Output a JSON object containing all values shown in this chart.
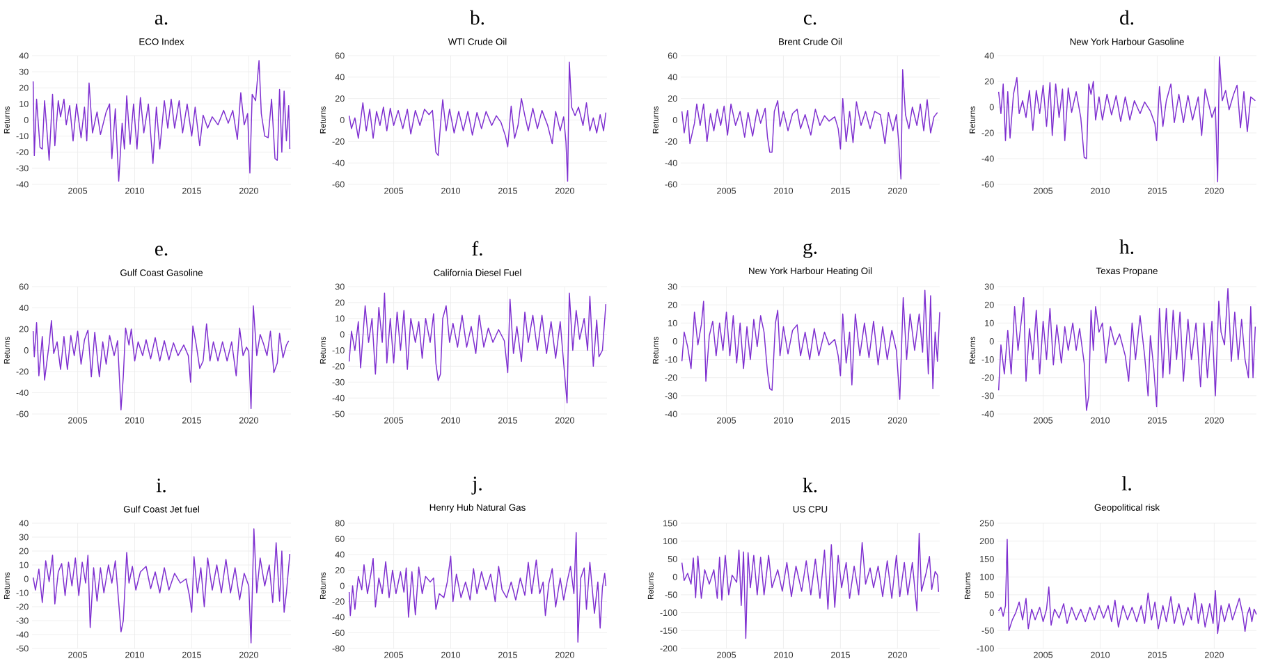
{
  "chart_data": [
    {
      "type": "line",
      "title": "a.",
      "subtitle": "ECO Index",
      "ylabel": "Returns",
      "color": "#7e2fd0",
      "grid": true,
      "xlim": [
        2001,
        2023.7
      ],
      "xticks": [
        2005,
        2010,
        2015,
        2020
      ],
      "ylim": [
        -40,
        40
      ],
      "yticks": [
        -40,
        -30,
        -20,
        -10,
        0,
        10,
        20,
        30,
        40
      ],
      "x": [
        2001.1,
        2001.2,
        2001.4,
        2001.7,
        2001.9,
        2002.1,
        2002.3,
        2002.5,
        2002.8,
        2003.0,
        2003.3,
        2003.5,
        2003.8,
        2004.0,
        2004.3,
        2004.6,
        2004.9,
        2005.3,
        2005.6,
        2005.8,
        2006.0,
        2006.3,
        2006.7,
        2007.0,
        2007.5,
        2007.8,
        2008.0,
        2008.3,
        2008.6,
        2008.9,
        2009.1,
        2009.3,
        2009.6,
        2009.9,
        2010.2,
        2010.5,
        2010.8,
        2011.2,
        2011.6,
        2011.9,
        2012.2,
        2012.6,
        2012.9,
        2013.2,
        2013.5,
        2013.9,
        2014.2,
        2014.6,
        2015.0,
        2015.3,
        2015.7,
        2016.0,
        2016.4,
        2016.8,
        2017.3,
        2017.8,
        2018.2,
        2018.6,
        2019.0,
        2019.3,
        2019.6,
        2019.9,
        2020.1,
        2020.3,
        2020.6,
        2020.9,
        2021.1,
        2021.4,
        2021.7,
        2022.0,
        2022.3,
        2022.5,
        2022.7,
        2022.9,
        2023.1,
        2023.3,
        2023.5,
        2023.6
      ],
      "values": [
        24,
        -22,
        13,
        -17,
        -18,
        12,
        -6,
        -25,
        16,
        -16,
        12,
        2,
        13,
        -3,
        9,
        -13,
        10,
        -11,
        8,
        -13,
        23,
        -8,
        5,
        -9,
        5,
        10,
        -24,
        7,
        -38,
        -2,
        -18,
        15,
        -15,
        10,
        -18,
        14,
        -8,
        10,
        -27,
        8,
        -18,
        12,
        -5,
        13,
        -5,
        12,
        -8,
        10,
        -10,
        8,
        -16,
        3,
        -5,
        2,
        -3,
        6,
        -2,
        6,
        -12,
        17,
        -3,
        4,
        -33,
        16,
        12,
        37,
        4,
        -10,
        -11,
        13,
        -24,
        -25,
        19,
        -20,
        18,
        -13,
        9,
        -18
      ]
    },
    {
      "type": "line",
      "title": "b.",
      "subtitle": "WTI Crude Oil",
      "ylabel": "Returns",
      "color": "#7e2fd0",
      "grid": true,
      "xlim": [
        2001,
        2023.7
      ],
      "xticks": [
        2005,
        2010,
        2015,
        2020
      ],
      "ylim": [
        -60,
        60
      ],
      "yticks": [
        -60,
        -40,
        -20,
        0,
        20,
        40,
        60
      ],
      "x": [
        2001.1,
        2001.3,
        2001.6,
        2001.9,
        2002.3,
        2002.6,
        2002.9,
        2003.2,
        2003.5,
        2003.8,
        2004.1,
        2004.4,
        2004.7,
        2005.0,
        2005.4,
        2005.8,
        2006.2,
        2006.5,
        2006.9,
        2007.3,
        2007.7,
        2008.1,
        2008.4,
        2008.7,
        2008.9,
        2009.1,
        2009.3,
        2009.6,
        2009.9,
        2010.3,
        2010.7,
        2011.1,
        2011.5,
        2011.9,
        2012.3,
        2012.7,
        2013.1,
        2013.6,
        2014.0,
        2014.4,
        2014.8,
        2015.0,
        2015.3,
        2015.6,
        2015.9,
        2016.2,
        2016.5,
        2016.8,
        2017.2,
        2017.6,
        2018.0,
        2018.5,
        2018.9,
        2019.2,
        2019.6,
        2019.9,
        2020.1,
        2020.25,
        2020.4,
        2020.6,
        2020.9,
        2021.2,
        2021.6,
        2021.9,
        2022.2,
        2022.5,
        2022.8,
        2023.1,
        2023.4,
        2023.6
      ],
      "values": [
        4,
        -8,
        2,
        -17,
        16,
        -10,
        10,
        -17,
        8,
        -5,
        12,
        -10,
        11,
        -5,
        9,
        -8,
        10,
        -13,
        9,
        -5,
        10,
        5,
        9,
        -30,
        -33,
        -5,
        19,
        -10,
        10,
        -12,
        8,
        -10,
        8,
        -14,
        7,
        -8,
        8,
        -5,
        4,
        -2,
        -15,
        -25,
        13,
        -17,
        -5,
        20,
        4,
        -10,
        11,
        -8,
        9,
        -5,
        -22,
        8,
        -10,
        3,
        -20,
        -57,
        54,
        12,
        4,
        12,
        -5,
        16,
        -10,
        2,
        -12,
        5,
        -10,
        7
      ]
    },
    {
      "type": "line",
      "title": "c.",
      "subtitle": "Brent Crude Oil",
      "ylabel": "Returns",
      "color": "#7e2fd0",
      "grid": true,
      "xlim": [
        2001,
        2023.7
      ],
      "xticks": [
        2005,
        2010,
        2015,
        2020
      ],
      "ylim": [
        -60,
        60
      ],
      "yticks": [
        -60,
        -40,
        -20,
        0,
        20,
        40,
        60
      ],
      "x": [
        2001.1,
        2001.3,
        2001.6,
        2001.8,
        2002.2,
        2002.4,
        2002.7,
        2003.0,
        2003.3,
        2003.6,
        2003.9,
        2004.2,
        2004.5,
        2004.8,
        2005.1,
        2005.4,
        2005.8,
        2006.2,
        2006.6,
        2006.9,
        2007.3,
        2007.7,
        2008.0,
        2008.4,
        2008.6,
        2008.8,
        2009.0,
        2009.2,
        2009.5,
        2009.7,
        2010.0,
        2010.4,
        2010.8,
        2011.2,
        2011.5,
        2011.9,
        2012.4,
        2012.8,
        2013.2,
        2013.6,
        2014.0,
        2014.5,
        2014.8,
        2015.0,
        2015.2,
        2015.5,
        2015.8,
        2016.1,
        2016.4,
        2016.8,
        2017.2,
        2017.6,
        2018.0,
        2018.5,
        2018.9,
        2019.2,
        2019.6,
        2019.9,
        2020.1,
        2020.3,
        2020.45,
        2020.7,
        2021.0,
        2021.3,
        2021.7,
        2022.0,
        2022.3,
        2022.6,
        2022.9,
        2023.2,
        2023.5
      ],
      "values": [
        8,
        -12,
        9,
        -22,
        -3,
        15,
        -5,
        15,
        -20,
        6,
        -10,
        10,
        -5,
        13,
        -14,
        15,
        -5,
        8,
        -16,
        7,
        -15,
        10,
        -3,
        11,
        -16,
        -30,
        -30,
        8,
        18,
        -6,
        8,
        -10,
        6,
        10,
        -8,
        5,
        -14,
        10,
        -5,
        4,
        -1,
        3,
        -8,
        -27,
        20,
        -20,
        8,
        -21,
        17,
        -5,
        8,
        -8,
        8,
        5,
        -22,
        7,
        -10,
        5,
        -20,
        -55,
        47,
        5,
        -8,
        12,
        -5,
        15,
        -10,
        19,
        -12,
        3,
        7
      ]
    },
    {
      "type": "line",
      "title": "d.",
      "subtitle": "New York Harbour Gasoline",
      "ylabel": "Returns",
      "color": "#7e2fd0",
      "grid": true,
      "xlim": [
        2001,
        2023.7
      ],
      "xticks": [
        2005,
        2010,
        2015,
        2020
      ],
      "ylim": [
        -60,
        40
      ],
      "yticks": [
        -60,
        -40,
        -20,
        0,
        20,
        40
      ],
      "x": [
        2001.1,
        2001.3,
        2001.5,
        2001.7,
        2001.9,
        2002.1,
        2002.4,
        2002.7,
        2002.9,
        2003.2,
        2003.5,
        2003.8,
        2004.1,
        2004.4,
        2004.7,
        2005.0,
        2005.3,
        2005.6,
        2005.8,
        2006.1,
        2006.4,
        2006.7,
        2006.9,
        2007.2,
        2007.5,
        2007.9,
        2008.3,
        2008.6,
        2008.8,
        2009.0,
        2009.2,
        2009.4,
        2009.6,
        2009.9,
        2010.2,
        2010.6,
        2011.0,
        2011.4,
        2011.8,
        2012.2,
        2012.6,
        2013.0,
        2013.5,
        2013.9,
        2014.4,
        2014.8,
        2014.95,
        2015.2,
        2015.5,
        2015.8,
        2016.2,
        2016.5,
        2016.9,
        2017.3,
        2017.7,
        2018.1,
        2018.6,
        2018.9,
        2019.2,
        2019.5,
        2019.8,
        2020.1,
        2020.3,
        2020.45,
        2020.7,
        2021.0,
        2021.3,
        2021.7,
        2022.0,
        2022.3,
        2022.6,
        2022.9,
        2023.2,
        2023.6
      ],
      "values": [
        12,
        -5,
        18,
        -26,
        12,
        -24,
        10,
        23,
        -5,
        5,
        -8,
        13,
        -18,
        13,
        -5,
        17,
        -15,
        19,
        -22,
        18,
        -8,
        14,
        -26,
        15,
        -4,
        12,
        -8,
        -39,
        -40,
        18,
        10,
        20,
        -10,
        8,
        -10,
        10,
        -6,
        9,
        -11,
        8,
        -10,
        5,
        -5,
        4,
        -3,
        -13,
        -26,
        16,
        -15,
        5,
        18,
        -12,
        10,
        -12,
        9,
        -10,
        8,
        -22,
        14,
        3,
        -8,
        0,
        -58,
        39,
        5,
        13,
        -2,
        10,
        17,
        -16,
        12,
        -19,
        8,
        5
      ]
    },
    {
      "type": "line",
      "title": "e.",
      "subtitle": "Gulf Coast Gasoline",
      "ylabel": "Returns",
      "color": "#7e2fd0",
      "grid": true,
      "xlim": [
        2001,
        2023.7
      ],
      "xticks": [
        2005,
        2010,
        2015,
        2020
      ],
      "ylim": [
        -60,
        60
      ],
      "yticks": [
        -60,
        -40,
        -20,
        0,
        20,
        40,
        60
      ],
      "x": [
        2001.1,
        2001.2,
        2001.4,
        2001.6,
        2001.9,
        2002.1,
        2002.5,
        2002.7,
        2002.9,
        2003.2,
        2003.5,
        2003.8,
        2004.1,
        2004.4,
        2004.7,
        2005.0,
        2005.3,
        2005.6,
        2005.9,
        2006.2,
        2006.5,
        2006.9,
        2007.2,
        2007.5,
        2007.8,
        2008.2,
        2008.5,
        2008.8,
        2009.0,
        2009.2,
        2009.5,
        2009.7,
        2010.0,
        2010.3,
        2010.7,
        2011.0,
        2011.4,
        2011.8,
        2012.2,
        2012.6,
        2013.0,
        2013.4,
        2013.8,
        2014.3,
        2014.7,
        2014.9,
        2015.1,
        2015.4,
        2015.7,
        2016.0,
        2016.3,
        2016.6,
        2016.9,
        2017.3,
        2017.7,
        2018.1,
        2018.5,
        2018.9,
        2019.2,
        2019.5,
        2019.8,
        2020.0,
        2020.2,
        2020.4,
        2020.7,
        2021.0,
        2021.3,
        2021.6,
        2021.9,
        2022.2,
        2022.5,
        2022.7,
        2023.0,
        2023.3,
        2023.5
      ],
      "values": [
        18,
        -6,
        26,
        -24,
        13,
        -28,
        6,
        28,
        -3,
        8,
        -18,
        13,
        -18,
        14,
        -5,
        18,
        -13,
        10,
        19,
        -25,
        17,
        -25,
        8,
        -13,
        14,
        -5,
        9,
        -56,
        -25,
        21,
        5,
        20,
        -10,
        8,
        -5,
        10,
        -8,
        12,
        -10,
        9,
        -9,
        7,
        -5,
        5,
        -5,
        -30,
        23,
        5,
        -17,
        -10,
        25,
        -10,
        8,
        -10,
        8,
        -10,
        8,
        -24,
        21,
        -5,
        3,
        -1,
        -55,
        42,
        -5,
        15,
        6,
        -5,
        18,
        -21,
        -12,
        16,
        -7,
        5,
        9
      ]
    },
    {
      "type": "line",
      "title": "f.",
      "subtitle": "California Diesel Fuel",
      "ylabel": "Returns",
      "color": "#7e2fd0",
      "grid": true,
      "xlim": [
        2001,
        2023.7
      ],
      "xticks": [
        2005,
        2010,
        2015,
        2020
      ],
      "ylim": [
        -50,
        30
      ],
      "yticks": [
        -50,
        -40,
        -30,
        -20,
        -10,
        0,
        10,
        20,
        30
      ],
      "x": [
        2001.1,
        2001.3,
        2001.6,
        2001.9,
        2002.1,
        2002.5,
        2002.8,
        2003.1,
        2003.4,
        2003.7,
        2004.0,
        2004.2,
        2004.4,
        2004.7,
        2005.0,
        2005.3,
        2005.6,
        2005.9,
        2006.2,
        2006.5,
        2006.9,
        2007.2,
        2007.5,
        2007.8,
        2008.2,
        2008.5,
        2008.7,
        2008.9,
        2009.1,
        2009.3,
        2009.6,
        2009.9,
        2010.2,
        2010.6,
        2011.0,
        2011.4,
        2011.8,
        2012.2,
        2012.5,
        2012.9,
        2013.3,
        2013.7,
        2014.2,
        2014.7,
        2015.0,
        2015.2,
        2015.5,
        2015.8,
        2016.2,
        2016.5,
        2016.8,
        2017.2,
        2017.6,
        2018.0,
        2018.4,
        2018.8,
        2019.2,
        2019.6,
        2019.9,
        2020.2,
        2020.4,
        2020.7,
        2021.0,
        2021.3,
        2021.7,
        2022.0,
        2022.2,
        2022.5,
        2022.8,
        2023.0,
        2023.3,
        2023.6
      ],
      "values": [
        -17,
        2,
        -10,
        8,
        -21,
        18,
        -5,
        10,
        -25,
        17,
        -5,
        26,
        -18,
        10,
        -18,
        14,
        -10,
        15,
        -22,
        10,
        -5,
        8,
        -15,
        10,
        -5,
        13,
        -18,
        -29,
        -25,
        10,
        18,
        -5,
        7,
        -8,
        12,
        -8,
        5,
        -12,
        12,
        -8,
        4,
        -5,
        3,
        -4,
        -24,
        22,
        -12,
        5,
        -17,
        14,
        -5,
        12,
        -10,
        12,
        -12,
        8,
        -15,
        8,
        -18,
        -43,
        26,
        -10,
        15,
        -3,
        10,
        -10,
        24,
        -20,
        9,
        -14,
        -10,
        19
      ]
    },
    {
      "type": "line",
      "title": "g.",
      "subtitle": "New York Harbour Heating Oil",
      "ylabel": "Returns",
      "color": "#7e2fd0",
      "grid": true,
      "xlim": [
        2001,
        2023.7
      ],
      "xticks": [
        2005,
        2010,
        2015,
        2020
      ],
      "ylim": [
        -40,
        30
      ],
      "yticks": [
        -40,
        -30,
        -20,
        -10,
        0,
        10,
        20,
        30
      ],
      "x": [
        2001.1,
        2001.3,
        2001.6,
        2001.9,
        2002.2,
        2002.5,
        2002.8,
        2003.0,
        2003.2,
        2003.5,
        2003.8,
        2004.1,
        2004.4,
        2004.7,
        2005.0,
        2005.3,
        2005.6,
        2005.9,
        2006.2,
        2006.5,
        2006.8,
        2007.1,
        2007.4,
        2007.7,
        2008.0,
        2008.3,
        2008.6,
        2008.8,
        2009.0,
        2009.3,
        2009.5,
        2009.7,
        2010.0,
        2010.4,
        2010.8,
        2011.2,
        2011.5,
        2011.9,
        2012.3,
        2012.7,
        2013.1,
        2013.6,
        2014.0,
        2014.5,
        2014.8,
        2015.0,
        2015.2,
        2015.5,
        2015.8,
        2016.0,
        2016.3,
        2016.7,
        2017.1,
        2017.5,
        2017.9,
        2018.3,
        2018.7,
        2019.1,
        2019.5,
        2019.9,
        2020.2,
        2020.5,
        2020.8,
        2021.1,
        2021.5,
        2021.9,
        2022.2,
        2022.4,
        2022.7,
        2022.9,
        2023.1,
        2023.3,
        2023.5,
        2023.7
      ],
      "values": [
        -11,
        5,
        -3,
        -15,
        16,
        -2,
        9,
        22,
        -22,
        3,
        11,
        -8,
        10,
        -5,
        16,
        -8,
        14,
        -12,
        10,
        -15,
        8,
        -10,
        12,
        -3,
        14,
        5,
        -17,
        -26,
        -27,
        10,
        17,
        -8,
        8,
        -7,
        6,
        9,
        -8,
        5,
        -10,
        7,
        -8,
        5,
        -2,
        1,
        -8,
        -19,
        15,
        -12,
        5,
        -24,
        15,
        -8,
        10,
        -9,
        11,
        -13,
        8,
        -10,
        6,
        -5,
        -32,
        24,
        -10,
        15,
        -5,
        15,
        -6,
        28,
        -18,
        25,
        -26,
        5,
        -11,
        16
      ]
    },
    {
      "type": "line",
      "title": "h.",
      "subtitle": "Texas Propane",
      "ylabel": "Returns",
      "color": "#7e2fd0",
      "grid": true,
      "xlim": [
        2001,
        2023.7
      ],
      "xticks": [
        2005,
        2010,
        2015,
        2020
      ],
      "ylim": [
        -40,
        30
      ],
      "yticks": [
        -40,
        -30,
        -20,
        -10,
        0,
        10,
        20,
        30
      ],
      "x": [
        2001.1,
        2001.3,
        2001.6,
        2001.9,
        2002.2,
        2002.5,
        2002.8,
        2003.1,
        2003.3,
        2003.5,
        2003.8,
        2004.1,
        2004.4,
        2004.7,
        2005.0,
        2005.3,
        2005.6,
        2005.9,
        2006.2,
        2006.6,
        2006.9,
        2007.2,
        2007.6,
        2007.9,
        2008.2,
        2008.6,
        2008.8,
        2009.0,
        2009.2,
        2009.4,
        2009.6,
        2009.9,
        2010.2,
        2010.5,
        2010.9,
        2011.3,
        2011.7,
        2012.2,
        2012.5,
        2012.8,
        2013.1,
        2013.5,
        2013.9,
        2014.2,
        2014.4,
        2014.7,
        2014.95,
        2015.2,
        2015.5,
        2015.8,
        2016.1,
        2016.4,
        2016.7,
        2017.0,
        2017.3,
        2017.7,
        2018.0,
        2018.4,
        2018.8,
        2019.1,
        2019.4,
        2019.8,
        2020.1,
        2020.4,
        2020.6,
        2020.9,
        2021.2,
        2021.5,
        2021.8,
        2022.1,
        2022.4,
        2022.7,
        2023.0,
        2023.2,
        2023.4,
        2023.6
      ],
      "values": [
        -27,
        -2,
        -18,
        6,
        -18,
        19,
        -5,
        12,
        24,
        -22,
        7,
        -10,
        17,
        -18,
        11,
        -10,
        18,
        -13,
        9,
        -12,
        8,
        -5,
        10,
        -5,
        7,
        -12,
        -38,
        -30,
        17,
        -5,
        19,
        5,
        10,
        -12,
        8,
        -2,
        4,
        -8,
        -22,
        10,
        -10,
        14,
        -8,
        -30,
        3,
        -15,
        -36,
        18,
        -20,
        18,
        -18,
        17,
        -10,
        16,
        -22,
        12,
        -10,
        10,
        -25,
        10,
        -20,
        11,
        -30,
        22,
        5,
        -2,
        29,
        -11,
        16,
        -10,
        12,
        -10,
        -20,
        19,
        -20,
        8
      ]
    },
    {
      "type": "line",
      "title": "i.",
      "subtitle": "Gulf Coast Jet fuel",
      "ylabel": "Returns",
      "color": "#7e2fd0",
      "grid": true,
      "xlim": [
        2001,
        2023.7
      ],
      "xticks": [
        2005,
        2010,
        2015,
        2020
      ],
      "ylim": [
        -50,
        40
      ],
      "yticks": [
        -50,
        -40,
        -30,
        -20,
        -10,
        0,
        10,
        20,
        30,
        40
      ],
      "x": [
        2001.1,
        2001.3,
        2001.6,
        2001.9,
        2002.2,
        2002.5,
        2002.8,
        2003.0,
        2003.3,
        2003.6,
        2003.9,
        2004.2,
        2004.5,
        2004.8,
        2005.1,
        2005.4,
        2005.7,
        2005.9,
        2006.1,
        2006.4,
        2006.7,
        2007.0,
        2007.3,
        2007.7,
        2008.0,
        2008.3,
        2008.6,
        2008.8,
        2009.0,
        2009.3,
        2009.5,
        2009.8,
        2010.1,
        2010.5,
        2011.0,
        2011.4,
        2011.8,
        2012.2,
        2012.6,
        2013.0,
        2013.5,
        2014.0,
        2014.5,
        2014.8,
        2015.0,
        2015.2,
        2015.5,
        2015.8,
        2016.1,
        2016.4,
        2016.8,
        2017.2,
        2017.6,
        2018.0,
        2018.4,
        2018.8,
        2019.2,
        2019.6,
        2020.0,
        2020.2,
        2020.45,
        2020.7,
        2021.0,
        2021.4,
        2021.8,
        2022.1,
        2022.4,
        2022.7,
        2022.9,
        2023.1,
        2023.3,
        2023.6
      ],
      "values": [
        1,
        -8,
        7,
        -17,
        13,
        -2,
        17,
        -18,
        5,
        11,
        -12,
        12,
        -5,
        15,
        -12,
        12,
        -3,
        17,
        -35,
        8,
        -16,
        8,
        -10,
        10,
        -3,
        13,
        -17,
        -38,
        -30,
        19,
        -3,
        9,
        -8,
        5,
        9,
        -7,
        5,
        -10,
        8,
        -8,
        4,
        -3,
        0,
        -12,
        -24,
        16,
        -10,
        8,
        -20,
        15,
        -8,
        10,
        -10,
        14,
        -10,
        8,
        -15,
        4,
        -5,
        -46,
        36,
        -10,
        15,
        -5,
        10,
        -17,
        26,
        -16,
        20,
        -24,
        -10,
        18
      ]
    },
    {
      "type": "line",
      "title": "j.",
      "subtitle": "Henry Hub Natural Gas",
      "ylabel": "Returns",
      "color": "#7e2fd0",
      "grid": true,
      "xlim": [
        2001,
        2023.7
      ],
      "xticks": [
        2005,
        2010,
        2015,
        2020
      ],
      "ylim": [
        -80,
        80
      ],
      "yticks": [
        -80,
        -60,
        -40,
        -20,
        0,
        20,
        40,
        60,
        80
      ],
      "x": [
        2001.1,
        2001.2,
        2001.4,
        2001.6,
        2001.9,
        2002.2,
        2002.4,
        2002.7,
        2003.0,
        2003.2,
        2003.4,
        2003.7,
        2004.0,
        2004.3,
        2004.6,
        2004.9,
        2005.2,
        2005.6,
        2005.9,
        2006.1,
        2006.3,
        2006.6,
        2006.9,
        2007.2,
        2007.5,
        2007.8,
        2008.2,
        2008.5,
        2008.7,
        2009.0,
        2009.4,
        2009.7,
        2010.0,
        2010.2,
        2010.5,
        2010.9,
        2011.3,
        2011.7,
        2012.0,
        2012.3,
        2012.7,
        2013.1,
        2013.5,
        2013.9,
        2014.2,
        2014.5,
        2014.9,
        2015.3,
        2015.7,
        2016.1,
        2016.5,
        2016.8,
        2017.1,
        2017.5,
        2017.8,
        2018.1,
        2018.3,
        2018.6,
        2018.9,
        2019.2,
        2019.6,
        2019.9,
        2020.2,
        2020.5,
        2020.8,
        2021.0,
        2021.15,
        2021.4,
        2021.7,
        2021.9,
        2022.2,
        2022.6,
        2022.9,
        2023.1,
        2023.3,
        2023.5,
        2023.6
      ],
      "values": [
        -8,
        -38,
        0,
        -30,
        12,
        -5,
        27,
        -10,
        15,
        35,
        -27,
        10,
        -10,
        31,
        -15,
        20,
        -10,
        18,
        -8,
        23,
        -40,
        18,
        -37,
        24,
        -10,
        12,
        5,
        10,
        -30,
        -10,
        -15,
        5,
        38,
        -20,
        15,
        -15,
        5,
        -18,
        22,
        -10,
        18,
        -5,
        15,
        -20,
        25,
        -5,
        -15,
        5,
        -18,
        10,
        -12,
        30,
        -10,
        33,
        -10,
        5,
        -38,
        3,
        22,
        -27,
        10,
        -18,
        5,
        25,
        -10,
        68,
        -72,
        10,
        23,
        -30,
        30,
        -35,
        5,
        -54,
        -2,
        16,
        0
      ]
    },
    {
      "type": "line",
      "title": "k.",
      "subtitle": "US CPU",
      "ylabel": "Returns",
      "color": "#7e2fd0",
      "grid": true,
      "xlim": [
        2001,
        2023.7
      ],
      "xticks": [
        2005,
        2010,
        2015,
        2020
      ],
      "ylim": [
        -200,
        150
      ],
      "yticks": [
        -200,
        -150,
        -100,
        -50,
        0,
        50,
        100,
        150
      ],
      "x": [
        2001.1,
        2001.3,
        2001.6,
        2001.9,
        2002.1,
        2002.3,
        2002.5,
        2002.8,
        2003.1,
        2003.5,
        2003.9,
        2004.2,
        2004.4,
        2004.6,
        2004.9,
        2005.2,
        2005.5,
        2005.9,
        2006.1,
        2006.3,
        2006.5,
        2006.7,
        2006.9,
        2007.1,
        2007.4,
        2007.7,
        2008.0,
        2008.3,
        2008.7,
        2009.0,
        2009.5,
        2009.9,
        2010.3,
        2010.7,
        2011.1,
        2011.6,
        2012.0,
        2012.4,
        2012.8,
        2013.2,
        2013.6,
        2013.9,
        2014.2,
        2014.5,
        2014.8,
        2015.1,
        2015.5,
        2015.8,
        2016.2,
        2016.6,
        2016.9,
        2017.2,
        2017.6,
        2017.9,
        2018.3,
        2018.7,
        2019.1,
        2019.5,
        2019.9,
        2020.2,
        2020.6,
        2020.9,
        2021.3,
        2021.7,
        2021.9,
        2022.1,
        2022.5,
        2022.8,
        2023.0,
        2023.3,
        2023.5,
        2023.6
      ],
      "values": [
        40,
        -10,
        10,
        -20,
        53,
        -58,
        58,
        -60,
        20,
        -20,
        20,
        -60,
        55,
        -65,
        60,
        -50,
        5,
        -15,
        75,
        -80,
        70,
        -172,
        68,
        -30,
        60,
        -50,
        55,
        -50,
        60,
        -30,
        20,
        -40,
        40,
        -55,
        30,
        -40,
        45,
        -50,
        50,
        -60,
        75,
        -90,
        90,
        -85,
        60,
        -30,
        40,
        -60,
        30,
        -50,
        96,
        -20,
        25,
        -30,
        30,
        -55,
        45,
        -60,
        60,
        -55,
        40,
        -50,
        40,
        -95,
        122,
        -40,
        10,
        57,
        -35,
        15,
        5,
        -42
      ]
    },
    {
      "type": "line",
      "title": "l.",
      "subtitle": "Geopolitical risk",
      "ylabel": "Returns",
      "color": "#7e2fd0",
      "grid": true,
      "xlim": [
        2001,
        2023.7
      ],
      "xticks": [
        2005,
        2010,
        2015,
        2020
      ],
      "ylim": [
        -100,
        250
      ],
      "yticks": [
        -100,
        -50,
        0,
        50,
        100,
        150,
        200,
        250
      ],
      "x": [
        2001.1,
        2001.3,
        2001.5,
        2001.7,
        2001.85,
        2002.0,
        2002.3,
        2002.6,
        2002.9,
        2003.2,
        2003.5,
        2003.7,
        2004.0,
        2004.3,
        2004.7,
        2005.0,
        2005.3,
        2005.5,
        2005.7,
        2006.0,
        2006.4,
        2006.8,
        2007.1,
        2007.5,
        2007.9,
        2008.3,
        2008.7,
        2009.1,
        2009.5,
        2009.9,
        2010.3,
        2010.7,
        2011.0,
        2011.3,
        2011.6,
        2012.0,
        2012.4,
        2012.8,
        2013.2,
        2013.6,
        2013.9,
        2014.2,
        2014.5,
        2014.8,
        2015.1,
        2015.5,
        2015.8,
        2016.2,
        2016.5,
        2016.9,
        2017.3,
        2017.7,
        2018.0,
        2018.3,
        2018.6,
        2018.9,
        2019.2,
        2019.6,
        2019.9,
        2020.1,
        2020.3,
        2020.6,
        2020.9,
        2021.3,
        2021.6,
        2021.9,
        2022.2,
        2022.5,
        2022.7,
        2022.9,
        2023.1,
        2023.3,
        2023.5,
        2023.7
      ],
      "values": [
        5,
        15,
        -10,
        20,
        205,
        -50,
        -20,
        0,
        30,
        -20,
        40,
        -45,
        10,
        -20,
        15,
        -25,
        10,
        72,
        -35,
        10,
        -15,
        25,
        -30,
        15,
        -20,
        10,
        -25,
        15,
        -20,
        20,
        -15,
        20,
        -25,
        35,
        -40,
        20,
        -20,
        15,
        -25,
        20,
        -30,
        55,
        -20,
        30,
        -45,
        20,
        -25,
        45,
        -30,
        25,
        -35,
        15,
        -20,
        55,
        -30,
        25,
        -40,
        25,
        -30,
        62,
        -58,
        20,
        -25,
        25,
        -20,
        10,
        40,
        -5,
        -52,
        -5,
        15,
        -25,
        10,
        -5
      ]
    }
  ]
}
